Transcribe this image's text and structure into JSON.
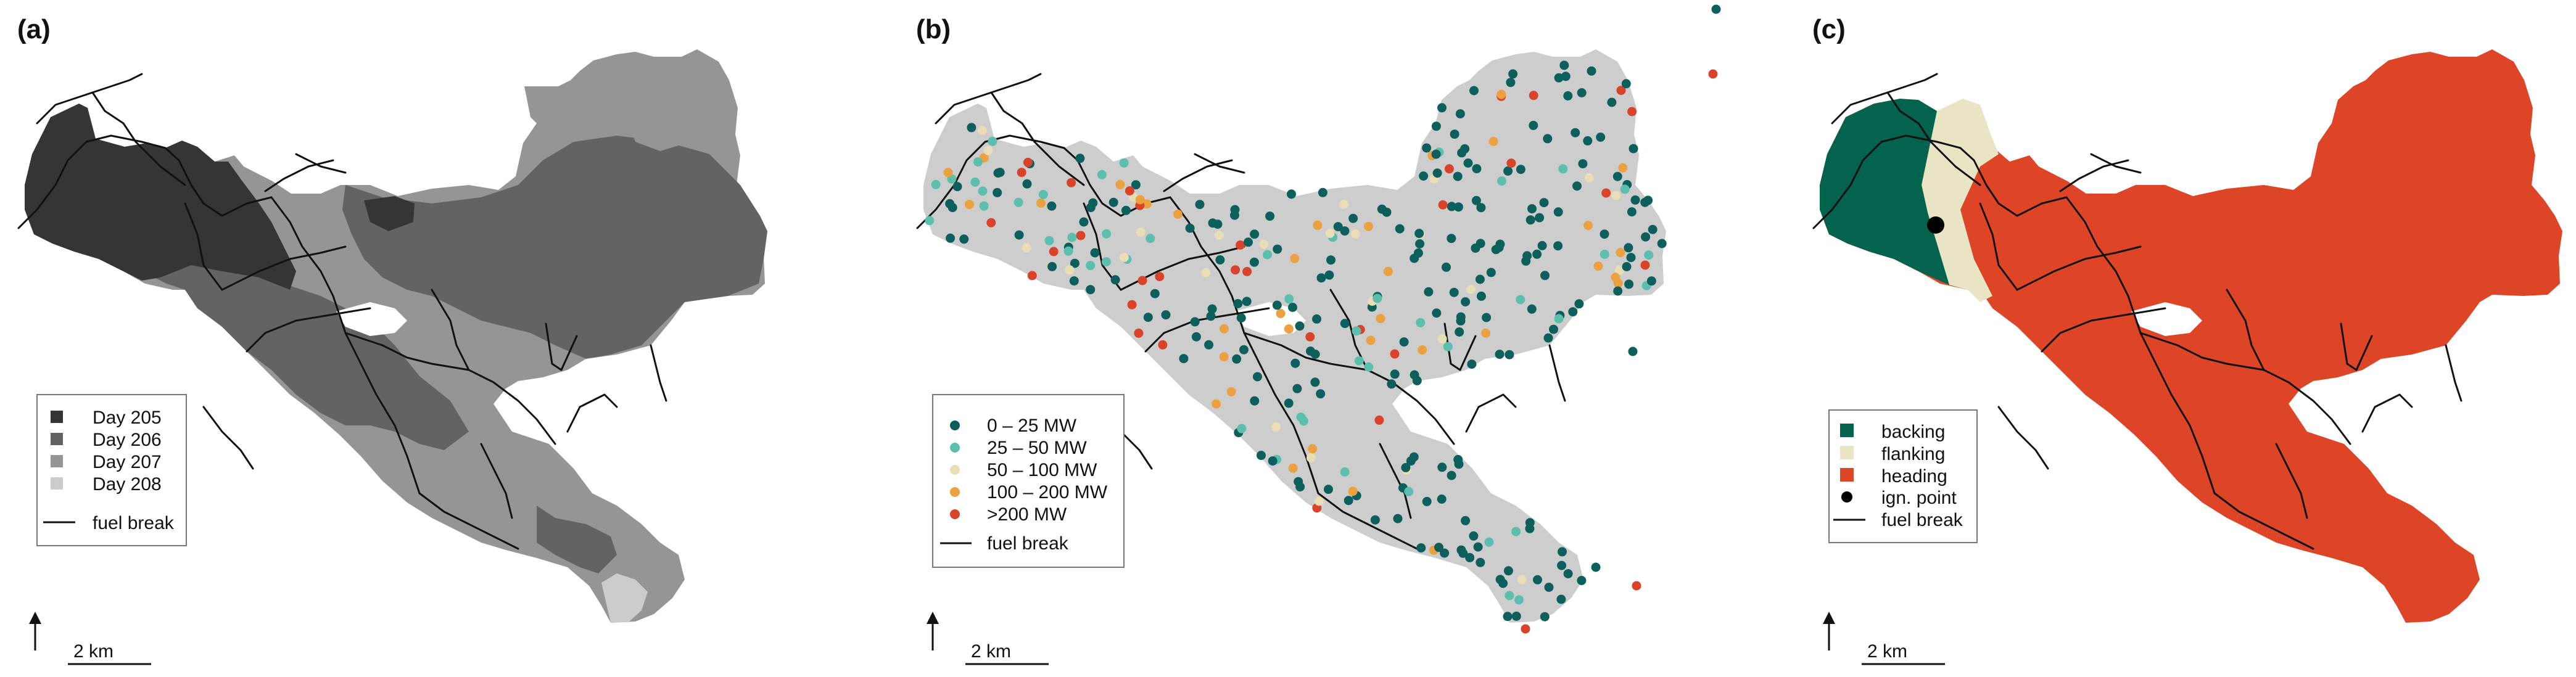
{
  "panels": [
    {
      "label": "(a)",
      "legend": [
        {
          "label": "Day 205",
          "color": "#353535"
        },
        {
          "label": "Day 206",
          "color": "#636363"
        },
        {
          "label": "Day 207",
          "color": "#959595"
        },
        {
          "label": "Day 208",
          "color": "#cccccc"
        }
      ],
      "fuel_break_label": "fuel break",
      "scale_label": "2 km"
    },
    {
      "label": "(b)",
      "legend": [
        {
          "label": "0 – 25 MW",
          "color": "#0d5f5c"
        },
        {
          "label": "25 – 50 MW",
          "color": "#5cbfad"
        },
        {
          "label": "50 – 100 MW",
          "color": "#e8ddb4"
        },
        {
          "label": "100 – 200 MW",
          "color": "#eba13f"
        },
        {
          "label": ">200 MW",
          "color": "#d8432a"
        }
      ],
      "fuel_break_label": "fuel break",
      "scale_label": "2 km"
    },
    {
      "label": "(c)",
      "legend": [
        {
          "label": "backing",
          "color": "#03634c"
        },
        {
          "label": "flanking",
          "color": "#e8e4c4"
        },
        {
          "label": "heading",
          "color": "#de4527"
        },
        {
          "label": "ign. point",
          "color": "#000000"
        }
      ],
      "fuel_break_label": "fuel break",
      "scale_label": "2 km"
    }
  ]
}
